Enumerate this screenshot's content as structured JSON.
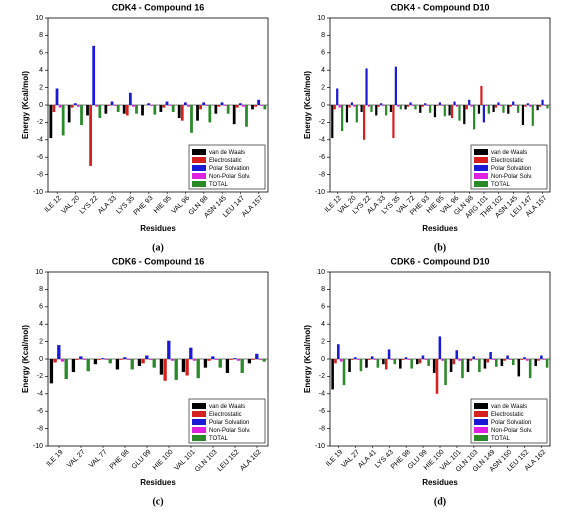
{
  "chart_data": [
    {
      "type": "bar",
      "title": "CDK4 - Compound 16",
      "panel_label": "(a)",
      "x_label": "Residues",
      "y_label": "Energy (Kcal/mol)",
      "categories": [
        "ILE 12",
        "VAL 20",
        "LYS 22",
        "ALA 33",
        "LYS 35",
        "PHE 93",
        "HIE 95",
        "VAL 96",
        "GLN 98",
        "ASN 145",
        "LEU 147",
        "ALA 157"
      ],
      "series": [
        {
          "name": "van de Waals",
          "color": "#000000",
          "values": [
            -3.8,
            -2.0,
            -1.2,
            -1.0,
            -1.0,
            -1.2,
            -0.8,
            -1.5,
            -1.8,
            -1.0,
            -2.2,
            -0.5
          ]
        },
        {
          "name": "Electrostatic",
          "color": "#d62020",
          "values": [
            -0.8,
            -0.3,
            -7.0,
            -0.1,
            -1.2,
            0.0,
            -0.3,
            -1.8,
            -0.5,
            -0.2,
            -0.3,
            -0.2
          ]
        },
        {
          "name": "Polar Solvation",
          "color": "#1a1ad6",
          "values": [
            1.9,
            0.2,
            6.8,
            0.4,
            1.4,
            0.2,
            0.4,
            0.3,
            0.3,
            0.3,
            0.2,
            0.6
          ]
        },
        {
          "name": "Non-Polar Solv.",
          "color": "#e020e0",
          "values": [
            -0.3,
            -0.2,
            -0.2,
            -0.1,
            -0.2,
            -0.1,
            -0.1,
            -0.2,
            -0.1,
            -0.1,
            -0.2,
            -0.1
          ]
        },
        {
          "name": "TOTAL",
          "color": "#2a8a2a",
          "values": [
            -3.5,
            -2.3,
            -1.5,
            -0.8,
            -1.0,
            -1.1,
            -0.8,
            -3.2,
            -2.0,
            -1.0,
            -2.5,
            -0.5
          ]
        }
      ],
      "ylim": [
        -10,
        10
      ],
      "yticks": [
        -10,
        -8,
        -6,
        -4,
        -2,
        0,
        2,
        4,
        6,
        8,
        10
      ],
      "legend": "lower right"
    },
    {
      "type": "bar",
      "title": "CDK4 - Compound D10",
      "panel_label": "(b)",
      "x_label": "Residues",
      "y_label": "Energy (Kcal/mol)",
      "categories": [
        "ILE 12",
        "VAL 20",
        "LYS 22",
        "ALA 33",
        "LYS 35",
        "VAL 72",
        "PHE 93",
        "HIE 95",
        "VAL 96",
        "GLN 98",
        "ARG 101",
        "THR 102",
        "ASN 145",
        "LEU 147",
        "ALA 157"
      ],
      "series": [
        {
          "name": "van de Waals",
          "color": "#000000",
          "values": [
            -3.8,
            -2.0,
            -0.8,
            -1.2,
            -0.8,
            -0.5,
            -0.9,
            -1.4,
            -1.2,
            -2.2,
            -1.0,
            -0.8,
            -1.0,
            -2.3,
            -0.6
          ]
        },
        {
          "name": "Electrostatic",
          "color": "#d62020",
          "values": [
            -0.5,
            -0.3,
            -4.0,
            -0.2,
            -3.8,
            -0.2,
            -0.2,
            -0.1,
            -1.5,
            -0.5,
            2.2,
            -0.3,
            -0.2,
            -0.2,
            -0.2
          ]
        },
        {
          "name": "Polar Solvation",
          "color": "#1a1ad6",
          "values": [
            1.9,
            0.3,
            4.2,
            0.2,
            4.4,
            0.3,
            0.2,
            0.3,
            0.4,
            0.6,
            -2.0,
            0.3,
            0.4,
            0.2,
            0.6
          ]
        },
        {
          "name": "Non-Polar Solv.",
          "color": "#e020e0",
          "values": [
            -0.3,
            -0.2,
            -0.2,
            -0.1,
            -0.2,
            -0.1,
            -0.1,
            -0.1,
            -0.2,
            -0.2,
            -0.1,
            -0.1,
            -0.1,
            -0.2,
            -0.1
          ]
        },
        {
          "name": "TOTAL",
          "color": "#2a8a2a",
          "values": [
            -3.0,
            -2.0,
            -0.8,
            -1.2,
            -0.5,
            -0.5,
            -0.9,
            -1.3,
            -1.8,
            -2.8,
            -1.0,
            -0.9,
            -0.9,
            -2.4,
            -0.4
          ]
        }
      ],
      "ylim": [
        -10,
        10
      ],
      "yticks": [
        -10,
        -8,
        -6,
        -4,
        -2,
        0,
        2,
        4,
        6,
        8,
        10
      ],
      "legend": "lower right"
    },
    {
      "type": "bar",
      "title": "CDK6 - Compound 16",
      "panel_label": "(c)",
      "x_label": "Residues",
      "y_label": "Energy (Kcal/mol)",
      "categories": [
        "ILE 19",
        "VAL 27",
        "VAL 77",
        "PHE 98",
        "GLU 99",
        "HIE 100",
        "VAL 101",
        "GLN 103",
        "LEU 152",
        "ALA 162"
      ],
      "series": [
        {
          "name": "van de Waals",
          "color": "#000000",
          "values": [
            -2.8,
            -1.5,
            -0.6,
            -1.2,
            -0.8,
            -1.8,
            -1.5,
            -1.0,
            -1.6,
            -0.5
          ]
        },
        {
          "name": "Electrostatic",
          "color": "#d62020",
          "values": [
            -0.4,
            -0.1,
            -0.1,
            -0.1,
            -0.5,
            -2.5,
            -1.9,
            -0.2,
            -0.1,
            -0.1
          ]
        },
        {
          "name": "Polar Solvation",
          "color": "#1a1ad6",
          "values": [
            1.6,
            0.3,
            0.1,
            0.2,
            0.4,
            2.1,
            1.3,
            0.3,
            0.1,
            0.6
          ]
        },
        {
          "name": "Non-Polar Solv.",
          "color": "#e020e0",
          "values": [
            -0.3,
            -0.1,
            -0.1,
            -0.1,
            -0.1,
            -0.2,
            -0.2,
            -0.1,
            -0.2,
            -0.1
          ]
        },
        {
          "name": "TOTAL",
          "color": "#2a8a2a",
          "values": [
            -2.3,
            -1.4,
            -0.5,
            -1.2,
            -1.0,
            -2.4,
            -2.2,
            -1.0,
            -1.6,
            -0.3
          ]
        }
      ],
      "ylim": [
        -10,
        10
      ],
      "yticks": [
        -10,
        -8,
        -6,
        -4,
        -2,
        0,
        2,
        4,
        6,
        8,
        10
      ],
      "legend": "lower right"
    },
    {
      "type": "bar",
      "title": "CDK6 - Compound D10",
      "panel_label": "(d)",
      "x_label": "Residues",
      "y_label": "Energy (Kcal/mol)",
      "categories": [
        "ILE 19",
        "VAL 27",
        "ALA 41",
        "LYS 43",
        "PHE 98",
        "GLU 99",
        "HIE 100",
        "VAL 101",
        "GLN 103",
        "GLN 149",
        "ASN 150",
        "LEU 152",
        "ALA 162"
      ],
      "series": [
        {
          "name": "van de Waals",
          "color": "#000000",
          "values": [
            -3.5,
            -1.5,
            -1.0,
            -0.6,
            -1.1,
            -0.6,
            -1.6,
            -1.5,
            -1.5,
            -1.1,
            -0.8,
            -2.0,
            -0.8
          ]
        },
        {
          "name": "Electrostatic",
          "color": "#d62020",
          "values": [
            -0.5,
            -0.1,
            -0.1,
            -1.2,
            -0.1,
            -0.5,
            -4.0,
            -0.6,
            -0.2,
            -0.4,
            -0.2,
            -0.1,
            -0.2
          ]
        },
        {
          "name": "Polar Solvation",
          "color": "#1a1ad6",
          "values": [
            1.7,
            0.2,
            0.3,
            1.1,
            0.2,
            0.4,
            2.6,
            1.0,
            0.3,
            0.8,
            0.4,
            0.2,
            0.4
          ]
        },
        {
          "name": "Non-Polar Solv.",
          "color": "#e020e0",
          "values": [
            -0.3,
            -0.1,
            -0.1,
            -0.1,
            -0.1,
            -0.1,
            -0.2,
            -0.2,
            -0.1,
            -0.1,
            -0.1,
            -0.2,
            -0.1
          ]
        },
        {
          "name": "TOTAL",
          "color": "#2a8a2a",
          "values": [
            -3.0,
            -1.4,
            -1.0,
            -0.6,
            -1.1,
            -0.8,
            -3.0,
            -2.2,
            -1.5,
            -0.9,
            -0.7,
            -2.2,
            -1.0
          ]
        }
      ],
      "ylim": [
        -10,
        10
      ],
      "yticks": [
        -10,
        -8,
        -6,
        -4,
        -2,
        0,
        2,
        4,
        6,
        8,
        10
      ],
      "legend": "lower right"
    }
  ]
}
